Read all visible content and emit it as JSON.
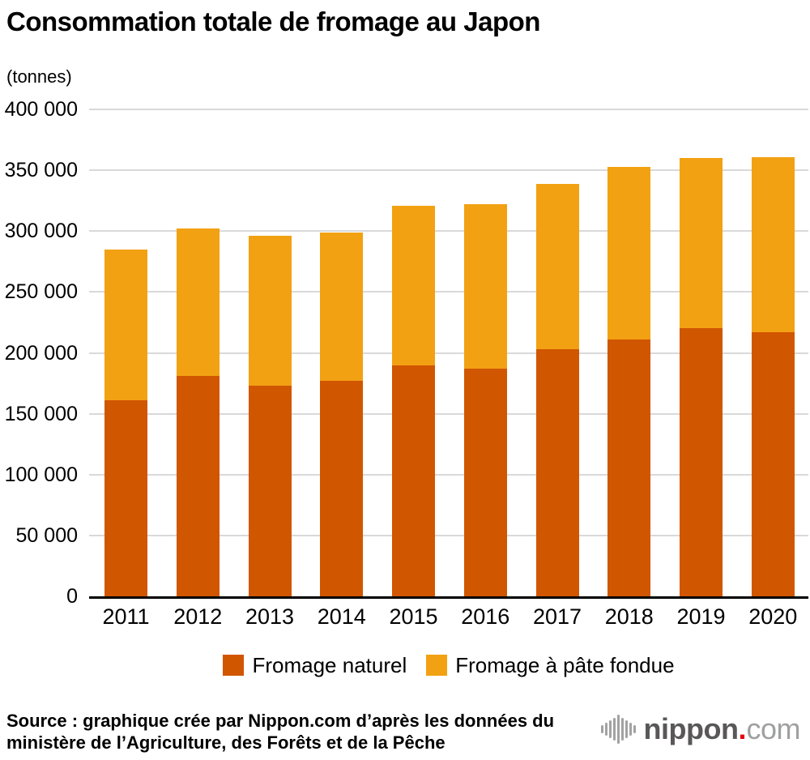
{
  "title": "Consommation totale de fromage au Japon",
  "unit_label": "(tonnes)",
  "chart_data": {
    "type": "bar",
    "stacked": true,
    "title": "Consommation totale de fromage au Japon",
    "ylabel": "(tonnes)",
    "xlabel": "",
    "grid": true,
    "legend_position": "bottom",
    "ylim": [
      0,
      400000
    ],
    "ytick_step": 50000,
    "ytick_labels": [
      "0",
      "50 000",
      "100 000",
      "150 000",
      "200 000",
      "250 000",
      "300 000",
      "350 000",
      "400 000"
    ],
    "categories": [
      "2011",
      "2012",
      "2013",
      "2014",
      "2015",
      "2016",
      "2017",
      "2018",
      "2019",
      "2020"
    ],
    "series": [
      {
        "name": "Fromage naturel",
        "color": "#d15600",
        "values": [
          161000,
          181000,
          173000,
          177000,
          190000,
          187000,
          203000,
          211000,
          220000,
          217000
        ]
      },
      {
        "name": "Fromage à pâte fondue",
        "color": "#f2a113",
        "values": [
          124000,
          121000,
          123000,
          122000,
          131000,
          135000,
          136000,
          142000,
          140000,
          144000
        ]
      }
    ],
    "totals": [
      285000,
      302000,
      296000,
      299000,
      321000,
      322000,
      339000,
      353000,
      360000,
      361000
    ]
  },
  "gridline_color": "#d9d9d9",
  "source": {
    "line1": "Source : graphique crée par Nippon.com d’après les données du",
    "line2": "ministère de l’Agriculture, des Forêts et de la Pêche"
  },
  "logo": {
    "name": "nippon",
    "dot": ".",
    "tld": "com"
  }
}
